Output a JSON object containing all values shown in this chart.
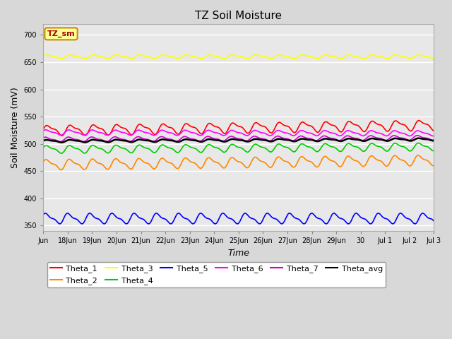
{
  "title": "TZ Soil Moisture",
  "xlabel": "Time",
  "ylabel": "Soil Moisture (mV)",
  "ylim": [
    340,
    720
  ],
  "yticks": [
    350,
    400,
    450,
    500,
    550,
    600,
    650,
    700
  ],
  "background_color": "#d8d8d8",
  "plot_bg_color": "#e8e8e8",
  "series": {
    "Theta_1": {
      "color": "#ff0000",
      "base": 525,
      "amp": 8,
      "freq": 1.05,
      "trend": 0.6,
      "phase": 0.0
    },
    "Theta_2": {
      "color": "#ff8800",
      "base": 462,
      "amp": 8,
      "freq": 1.05,
      "trend": 0.5,
      "phase": 0.3
    },
    "Theta_3": {
      "color": "#ffff00",
      "base": 660,
      "amp": 3,
      "freq": 1.05,
      "trend": 0.0,
      "phase": 0.1
    },
    "Theta_4": {
      "color": "#00cc00",
      "base": 490,
      "amp": 6,
      "freq": 1.05,
      "trend": 0.3,
      "phase": 0.2
    },
    "Theta_5": {
      "color": "#0000ff",
      "base": 363,
      "amp": 8,
      "freq": 1.1,
      "trend": 0.0,
      "phase": 0.5
    },
    "Theta_6": {
      "color": "#ff00ff",
      "base": 521,
      "amp": 4,
      "freq": 1.05,
      "trend": -0.1,
      "phase": 0.4
    },
    "Theta_7": {
      "color": "#cc00cc",
      "base": 508,
      "amp": 3.5,
      "freq": 1.05,
      "trend": 0.2,
      "phase": 0.6
    },
    "Theta_avg": {
      "color": "#000000",
      "base": 505,
      "amp": 2,
      "freq": 1.05,
      "trend": 0.2,
      "phase": 0.1
    }
  },
  "tick_labels": [
    "Jun",
    "18Jun",
    "19Jun",
    "20Jun",
    "21Jun",
    "22Jun",
    "23Jun",
    "24Jun",
    "25Jun",
    "26Jun",
    "27Jun",
    "28Jun",
    "29Jun",
    "30",
    "Jul 1",
    "Jul 2",
    "Jul 3"
  ],
  "legend_label": "TZ_sm",
  "legend_box_color": "#ffff99",
  "legend_box_edge": "#cc8800",
  "legend_entries_row1": [
    "Theta_1",
    "Theta_2",
    "Theta_3",
    "Theta_4",
    "Theta_5",
    "Theta_6"
  ],
  "legend_entries_row2": [
    "Theta_7",
    "Theta_avg"
  ]
}
